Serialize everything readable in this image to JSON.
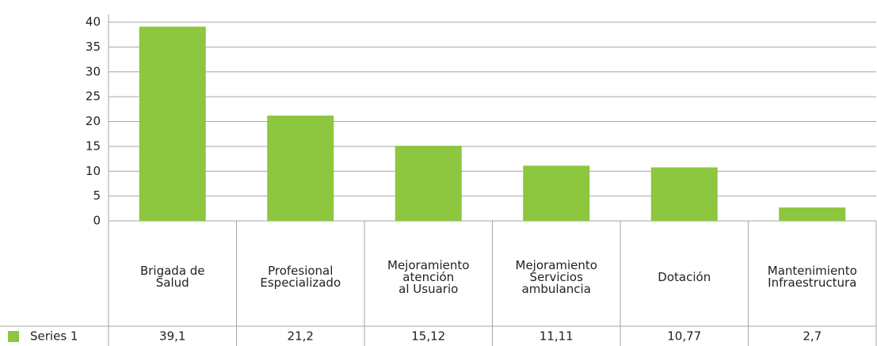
{
  "chart_data": {
    "type": "bar",
    "categories": [
      "Brigada de\nSalud",
      "Profesional\nEspecializado",
      "Mejoramiento\natención\nal Usuario",
      "Mejoramiento\nServicios\nambulancia",
      "Dotación",
      "Mantenimiento\nInfraestructura"
    ],
    "series": [
      {
        "name": "Series 1",
        "color": "#8dc63f",
        "values": [
          39.1,
          21.2,
          15.12,
          11.11,
          10.77,
          2.7
        ],
        "value_labels": [
          "39,1",
          "21,2",
          "15,12",
          "11,11",
          "10,77",
          "2,7"
        ]
      }
    ],
    "ylim": [
      0,
      40
    ],
    "yticks": [
      0,
      5,
      10,
      15,
      20,
      25,
      30,
      35,
      40
    ],
    "grid": true
  }
}
